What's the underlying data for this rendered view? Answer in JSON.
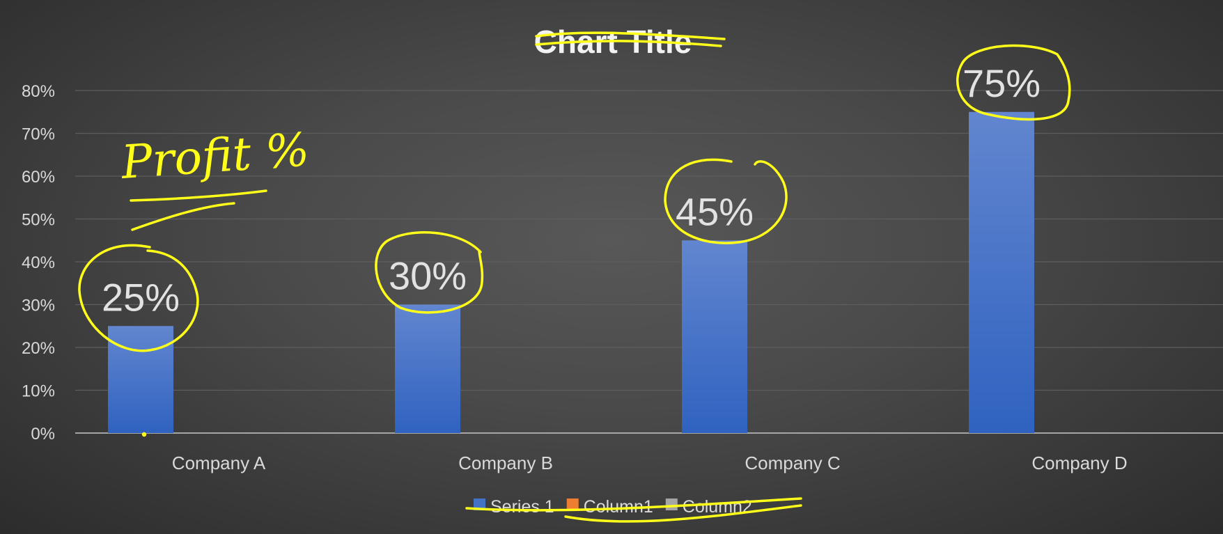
{
  "chart_data": {
    "type": "bar",
    "title": "Chart Title",
    "categories": [
      "Company A",
      "Company B",
      "Company C",
      "Company D"
    ],
    "series": [
      {
        "name": "Series 1",
        "values": [
          25,
          30,
          45,
          75
        ],
        "color": "#4472c4"
      }
    ],
    "data_labels": [
      "25%",
      "30%",
      "45%",
      "75%"
    ],
    "ylim": [
      0,
      80
    ],
    "yticks": [
      "0%",
      "10%",
      "20%",
      "30%",
      "40%",
      "50%",
      "60%",
      "70%",
      "80%"
    ],
    "grid": true,
    "legend": {
      "position": "bottom",
      "entries": [
        {
          "name": "Series 1",
          "color": "#4472c4"
        },
        {
          "name": "Column1",
          "color": "#ed7d31"
        },
        {
          "name": "Column2",
          "color": "#a5a5a5"
        }
      ]
    }
  },
  "annotation": {
    "text": "Profit %",
    "color": "#ffff1a"
  }
}
